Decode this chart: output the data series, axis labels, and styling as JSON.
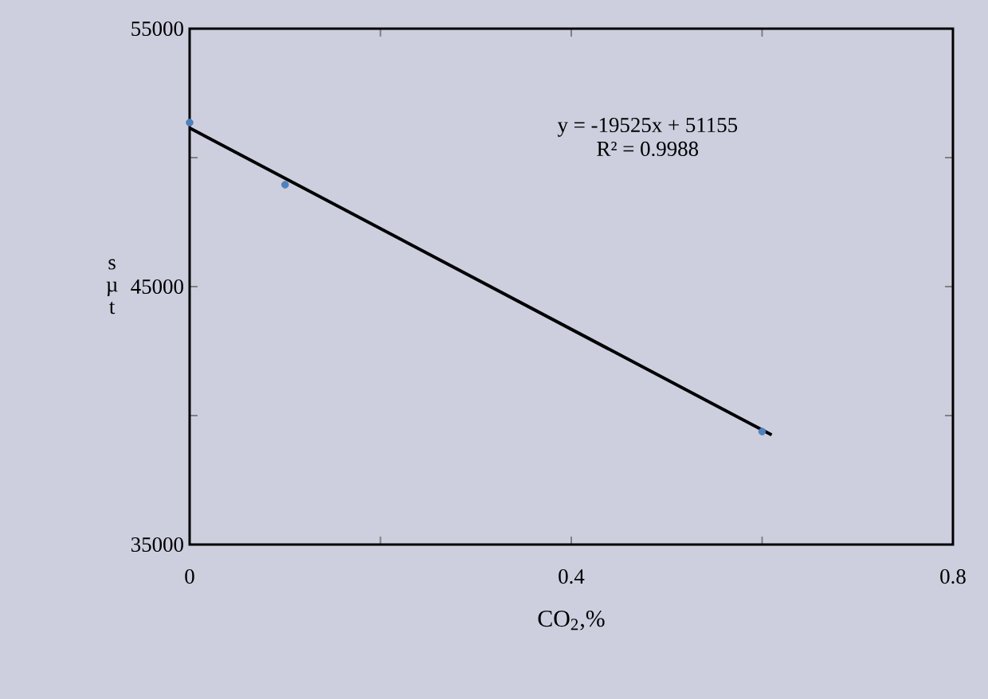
{
  "chart_data": {
    "type": "scatter",
    "xlabel": "CO$_{2}$,%",
    "ylabel": "s µ t",
    "xlim": [
      0,
      0.8
    ],
    "xticks": [
      0,
      {
        "value": 0.2,
        "label": null
      },
      0.4,
      {
        "value": 0.6,
        "label": null
      },
      0.8
    ],
    "ylim": [
      35000,
      55000
    ],
    "yticks": [
      35000,
      {
        "value": 40000,
        "label": null
      },
      45000,
      {
        "value": 50000,
        "label": null
      },
      55000
    ],
    "x": [
      0,
      0.1,
      0.6
    ],
    "series": [
      {
        "color": "#4f81bd",
        "marker": "circle",
        "values": [
          51360,
          48950,
          39380
        ]
      },
      {
        "type": "line",
        "color": "#000000",
        "marker": "none",
        "line_style": "solid",
        "x": [
          0,
          0.61
        ],
        "values": [
          51150,
          39250
        ]
      }
    ],
    "annotations": [
      "y = -19525x + 51155",
      "R² = 0.9988"
    ],
    "grid": false
  }
}
